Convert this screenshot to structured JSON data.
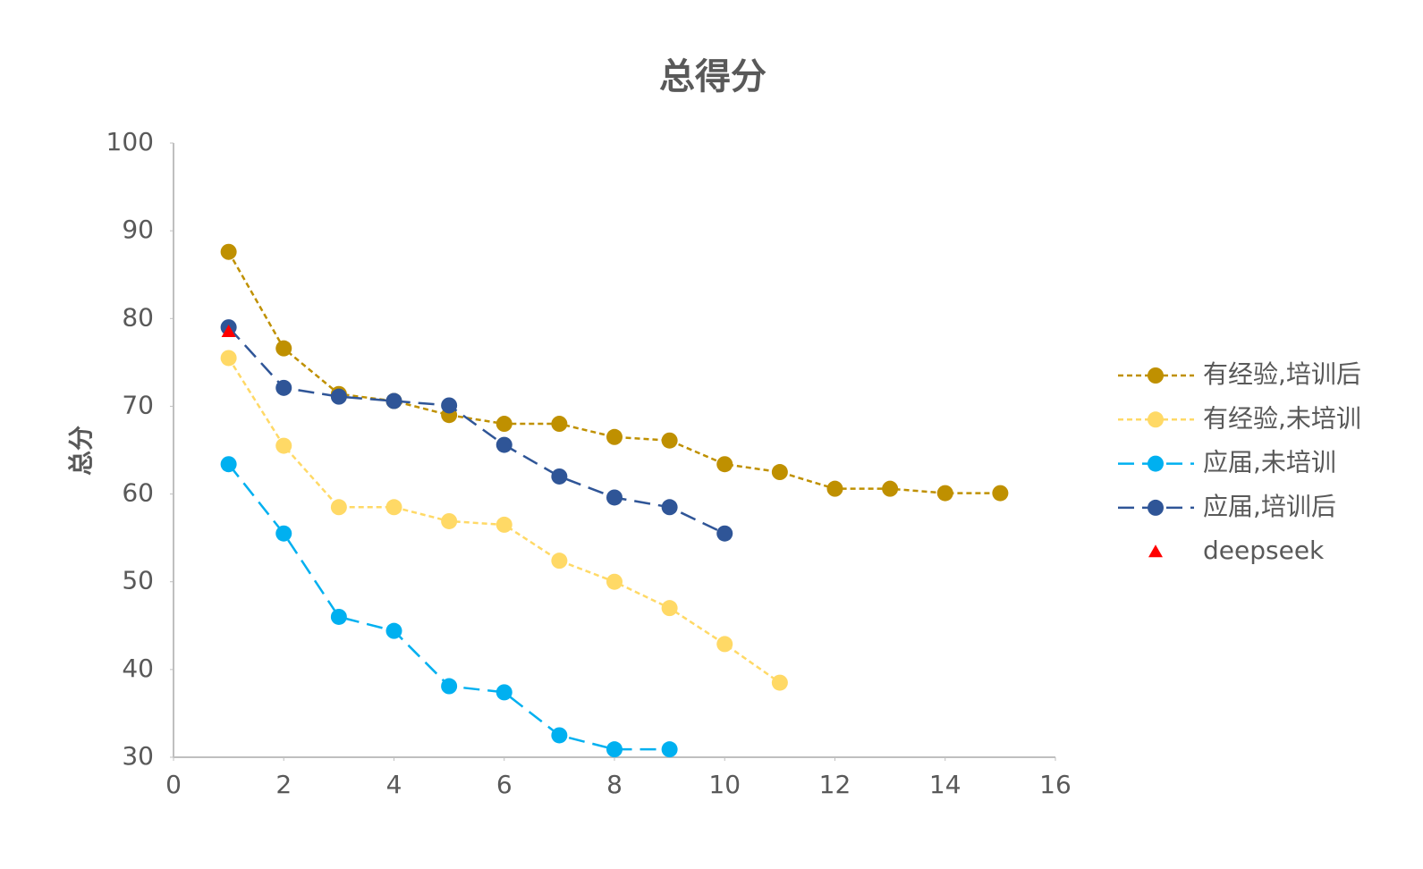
{
  "chart_data": {
    "type": "line",
    "title": "总得分",
    "y_label": "总分",
    "xlim": [
      0,
      16
    ],
    "xticks": [
      0,
      2,
      4,
      6,
      8,
      10,
      12,
      14,
      16
    ],
    "ylim": [
      30,
      100
    ],
    "yticks": [
      30,
      40,
      50,
      60,
      70,
      80,
      90,
      100
    ],
    "grid": false,
    "legend": "right",
    "series": [
      {
        "name": "有经验,培训后",
        "color": "#bf9000",
        "line_style": "dotted",
        "marker": "circle",
        "x": [
          1,
          2,
          3,
          4,
          5,
          6,
          7,
          8,
          9,
          10,
          11,
          12,
          13,
          14,
          15
        ],
        "values": [
          87.6,
          76.6,
          71.4,
          70.6,
          69.0,
          68.0,
          68.0,
          66.5,
          66.1,
          63.4,
          62.5,
          60.6,
          60.6,
          60.1,
          60.1
        ]
      },
      {
        "name": "有经验,未培训",
        "color": "#ffd966",
        "line_style": "dotted",
        "marker": "circle",
        "x": [
          1,
          2,
          3,
          4,
          5,
          6,
          7,
          8,
          9,
          10,
          11
        ],
        "values": [
          75.5,
          65.5,
          58.5,
          58.5,
          56.9,
          56.5,
          52.4,
          50.0,
          47.0,
          42.9,
          38.5
        ]
      },
      {
        "name": "应届,未培训",
        "color": "#00b0f0",
        "line_style": "dashed",
        "marker": "circle",
        "x": [
          1,
          2,
          3,
          4,
          5,
          6,
          7,
          8,
          9
        ],
        "values": [
          63.4,
          55.5,
          46.0,
          44.4,
          38.1,
          37.4,
          32.5,
          30.9,
          30.9
        ]
      },
      {
        "name": "应届,培训后",
        "color": "#2f5597",
        "line_style": "dashed",
        "marker": "circle",
        "x": [
          1,
          2,
          3,
          4,
          5,
          6,
          7,
          8,
          9,
          10
        ],
        "values": [
          79.0,
          72.1,
          71.1,
          70.6,
          70.1,
          65.6,
          62.0,
          59.6,
          58.5,
          55.5
        ]
      },
      {
        "name": "deepseek",
        "color": "#ff0000",
        "line_style": "none",
        "marker": "triangle",
        "x": [
          1
        ],
        "values": [
          78.5
        ]
      }
    ]
  }
}
